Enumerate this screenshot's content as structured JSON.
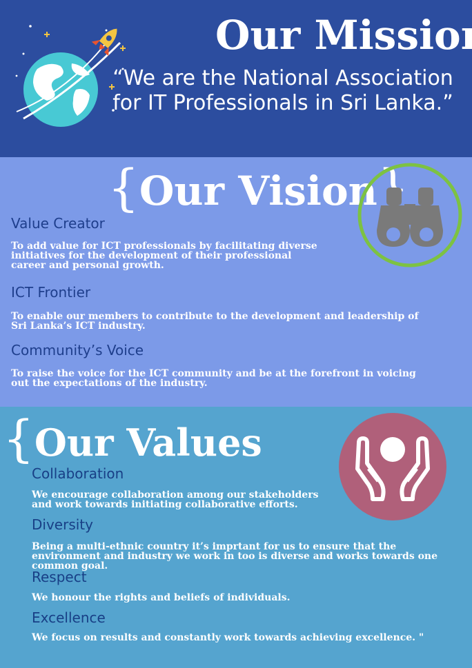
{
  "mission": {
    "title": "Our Mission",
    "brace_close": "}",
    "quote": "“We are the National Association for IT Professionals in Sri Lanka.”",
    "icon": "globe-rocket-icon"
  },
  "vision": {
    "title": "Our Vision",
    "brace_open": "{",
    "brace_close": "}",
    "icon": "binoculars-icon",
    "ring_color": "#7dc242",
    "items": [
      {
        "heading": "Value Creator",
        "text": "To add value for ICT professionals by facilitating diverse initiatives for the development of their professional career and personal growth."
      },
      {
        "heading": "ICT Frontier",
        "text": "To enable our members to contribute to the development and leadership of Sri Lanka’s ICT industry."
      },
      {
        "heading": "Community’s Voice",
        "text": "To raise the voice for the ICT community and be at the forefront in voicing out the expectations of the industry."
      }
    ]
  },
  "values": {
    "title": "Our Values",
    "brace_open": "{",
    "icon": "hands-person-icon",
    "circle_color": "#b0607a",
    "items": [
      {
        "heading": "Collaboration",
        "text": "We encourage collaboration among our stakeholders and work towards initiating collaborative efforts."
      },
      {
        "heading": "Diversity",
        "text": "Being a multi-ethnic country it’s imprtant for us to ensure that the environment and industry we work in too is diverse and works towards one common goal."
      },
      {
        "heading": "Respect",
        "text": "We honour the rights and beliefs of individuals."
      },
      {
        "heading": "Excellence",
        "text": "We focus on results and constantly work towards achieving excellence. \""
      }
    ]
  }
}
